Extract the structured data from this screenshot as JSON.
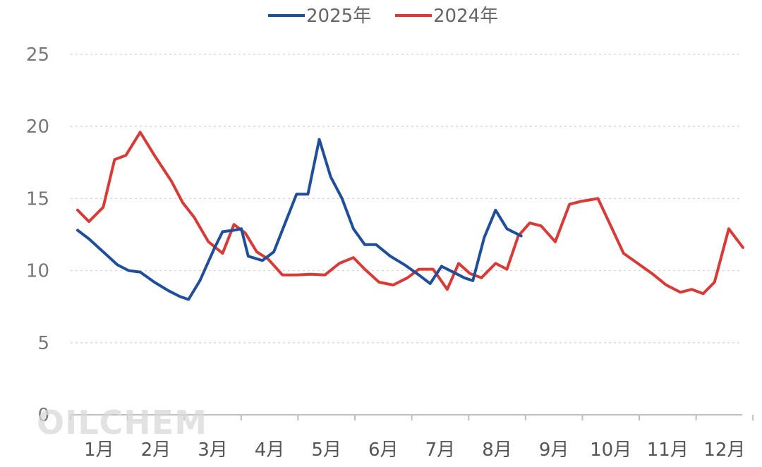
{
  "watermark": "OILCHEM",
  "chart_data": {
    "type": "line",
    "title": "",
    "xlabel": "",
    "ylabel": "",
    "ylim": [
      0,
      25
    ],
    "yticks": [
      0,
      5,
      10,
      15,
      20,
      25
    ],
    "grid": true,
    "legend_position": "top-center",
    "categories": [
      "1月",
      "2月",
      "3月",
      "4月",
      "5月",
      "6月",
      "7月",
      "8月",
      "9月",
      "10月",
      "11月",
      "12月"
    ],
    "series": [
      {
        "name": "2025年",
        "color": "#1f4e9a",
        "points": [
          [
            1,
            12.8
          ],
          [
            1.2,
            12.2
          ],
          [
            1.45,
            11.3
          ],
          [
            1.7,
            10.4
          ],
          [
            1.9,
            10.0
          ],
          [
            2.1,
            9.9
          ],
          [
            2.35,
            9.2
          ],
          [
            2.6,
            8.6
          ],
          [
            2.8,
            8.2
          ],
          [
            2.95,
            8.0
          ],
          [
            3.15,
            9.3
          ],
          [
            3.4,
            11.5
          ],
          [
            3.55,
            12.7
          ],
          [
            3.75,
            12.8
          ],
          [
            3.88,
            12.9
          ],
          [
            4.0,
            11.0
          ],
          [
            4.25,
            10.7
          ],
          [
            4.45,
            11.3
          ],
          [
            4.65,
            13.3
          ],
          [
            4.85,
            15.3
          ],
          [
            5.05,
            15.3
          ],
          [
            5.25,
            19.1
          ],
          [
            5.45,
            16.5
          ],
          [
            5.65,
            15.0
          ],
          [
            5.85,
            12.9
          ],
          [
            6.05,
            11.8
          ],
          [
            6.25,
            11.8
          ],
          [
            6.5,
            11.0
          ],
          [
            6.75,
            10.4
          ],
          [
            7.0,
            9.7
          ],
          [
            7.2,
            9.1
          ],
          [
            7.4,
            10.3
          ],
          [
            7.6,
            9.9
          ],
          [
            7.8,
            9.5
          ],
          [
            7.95,
            9.3
          ],
          [
            8.15,
            12.3
          ],
          [
            8.35,
            14.2
          ],
          [
            8.55,
            12.9
          ],
          [
            8.8,
            12.4
          ]
        ]
      },
      {
        "name": "2024年",
        "color": "#d93a35",
        "points": [
          [
            1,
            14.2
          ],
          [
            1.2,
            13.4
          ],
          [
            1.45,
            14.4
          ],
          [
            1.65,
            17.7
          ],
          [
            1.85,
            18.0
          ],
          [
            2.1,
            19.6
          ],
          [
            2.35,
            18.0
          ],
          [
            2.65,
            16.2
          ],
          [
            2.85,
            14.7
          ],
          [
            3.05,
            13.7
          ],
          [
            3.3,
            12.0
          ],
          [
            3.55,
            11.2
          ],
          [
            3.75,
            13.2
          ],
          [
            3.95,
            12.6
          ],
          [
            4.15,
            11.3
          ],
          [
            4.35,
            10.8
          ],
          [
            4.6,
            9.7
          ],
          [
            4.85,
            9.7
          ],
          [
            5.1,
            9.75
          ],
          [
            5.35,
            9.7
          ],
          [
            5.6,
            10.5
          ],
          [
            5.85,
            10.9
          ],
          [
            6.05,
            10.1
          ],
          [
            6.3,
            9.2
          ],
          [
            6.55,
            9.0
          ],
          [
            6.8,
            9.5
          ],
          [
            7.0,
            10.1
          ],
          [
            7.25,
            10.1
          ],
          [
            7.5,
            8.7
          ],
          [
            7.7,
            10.5
          ],
          [
            7.9,
            9.8
          ],
          [
            8.1,
            9.5
          ],
          [
            8.35,
            10.5
          ],
          [
            8.55,
            10.1
          ],
          [
            8.75,
            12.4
          ],
          [
            8.95,
            13.3
          ],
          [
            9.15,
            13.1
          ],
          [
            9.4,
            12.0
          ],
          [
            9.65,
            14.6
          ],
          [
            9.85,
            14.8
          ],
          [
            10.15,
            15.0
          ],
          [
            10.4,
            12.9
          ],
          [
            10.6,
            11.2
          ],
          [
            10.85,
            10.5
          ],
          [
            11.1,
            9.8
          ],
          [
            11.35,
            9.0
          ],
          [
            11.6,
            8.5
          ],
          [
            11.8,
            8.7
          ],
          [
            12.0,
            8.4
          ],
          [
            12.2,
            9.2
          ],
          [
            12.45,
            12.9
          ],
          [
            12.7,
            11.6
          ]
        ]
      }
    ]
  }
}
